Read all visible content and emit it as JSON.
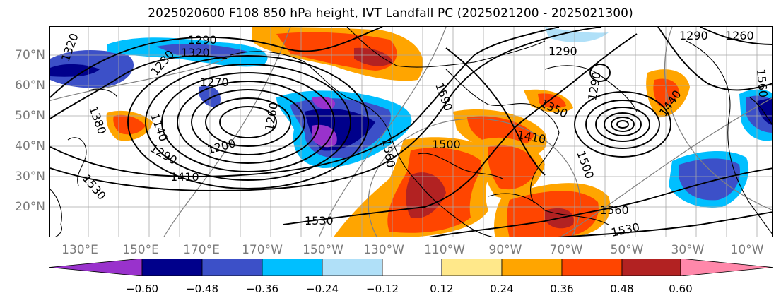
{
  "title": "2025020600 F108 850 hPa height, IVT Landfall PC (2025021200 - 2025021300)",
  "lat_labels": [
    "70°N",
    "60°N",
    "50°N",
    "40°N",
    "30°N",
    "20°N"
  ],
  "lon_labels": [
    "130°E",
    "150°E",
    "170°E",
    "170°W",
    "150°W",
    "130°W",
    "110°W",
    "90°W",
    "70°W",
    "50°W",
    "30°W",
    "10°W"
  ],
  "contour_labels": [
    {
      "text": "1320"
    },
    {
      "text": "1320"
    },
    {
      "text": "1290"
    },
    {
      "text": "1270"
    },
    {
      "text": "1230"
    },
    {
      "text": "1140"
    },
    {
      "text": "1380"
    },
    {
      "text": "1290"
    },
    {
      "text": "1200"
    },
    {
      "text": "1410"
    },
    {
      "text": "1530"
    },
    {
      "text": "1260"
    },
    {
      "text": "1560"
    },
    {
      "text": "1530"
    },
    {
      "text": "1500"
    },
    {
      "text": "1560"
    },
    {
      "text": "1590"
    },
    {
      "text": "1290"
    },
    {
      "text": "1350"
    },
    {
      "text": "1290"
    },
    {
      "text": "1410"
    },
    {
      "text": "1440"
    },
    {
      "text": "1290"
    },
    {
      "text": "1260"
    },
    {
      "text": "1560"
    },
    {
      "text": "1530"
    },
    {
      "text": "1500"
    }
  ],
  "colorbar": {
    "colors": [
      "#9932cc",
      "#00008b",
      "#3c50c8",
      "#00bfff",
      "#b0e0f8",
      "#ffffff",
      "#ffe88a",
      "#ffa500",
      "#ff4500",
      "#b22222",
      "#ff88aa"
    ],
    "tick_labels": [
      "−0.60",
      "−0.48",
      "−0.36",
      "−0.24",
      "−0.12",
      "0.12",
      "0.24",
      "0.36",
      "0.48",
      "0.60"
    ]
  }
}
